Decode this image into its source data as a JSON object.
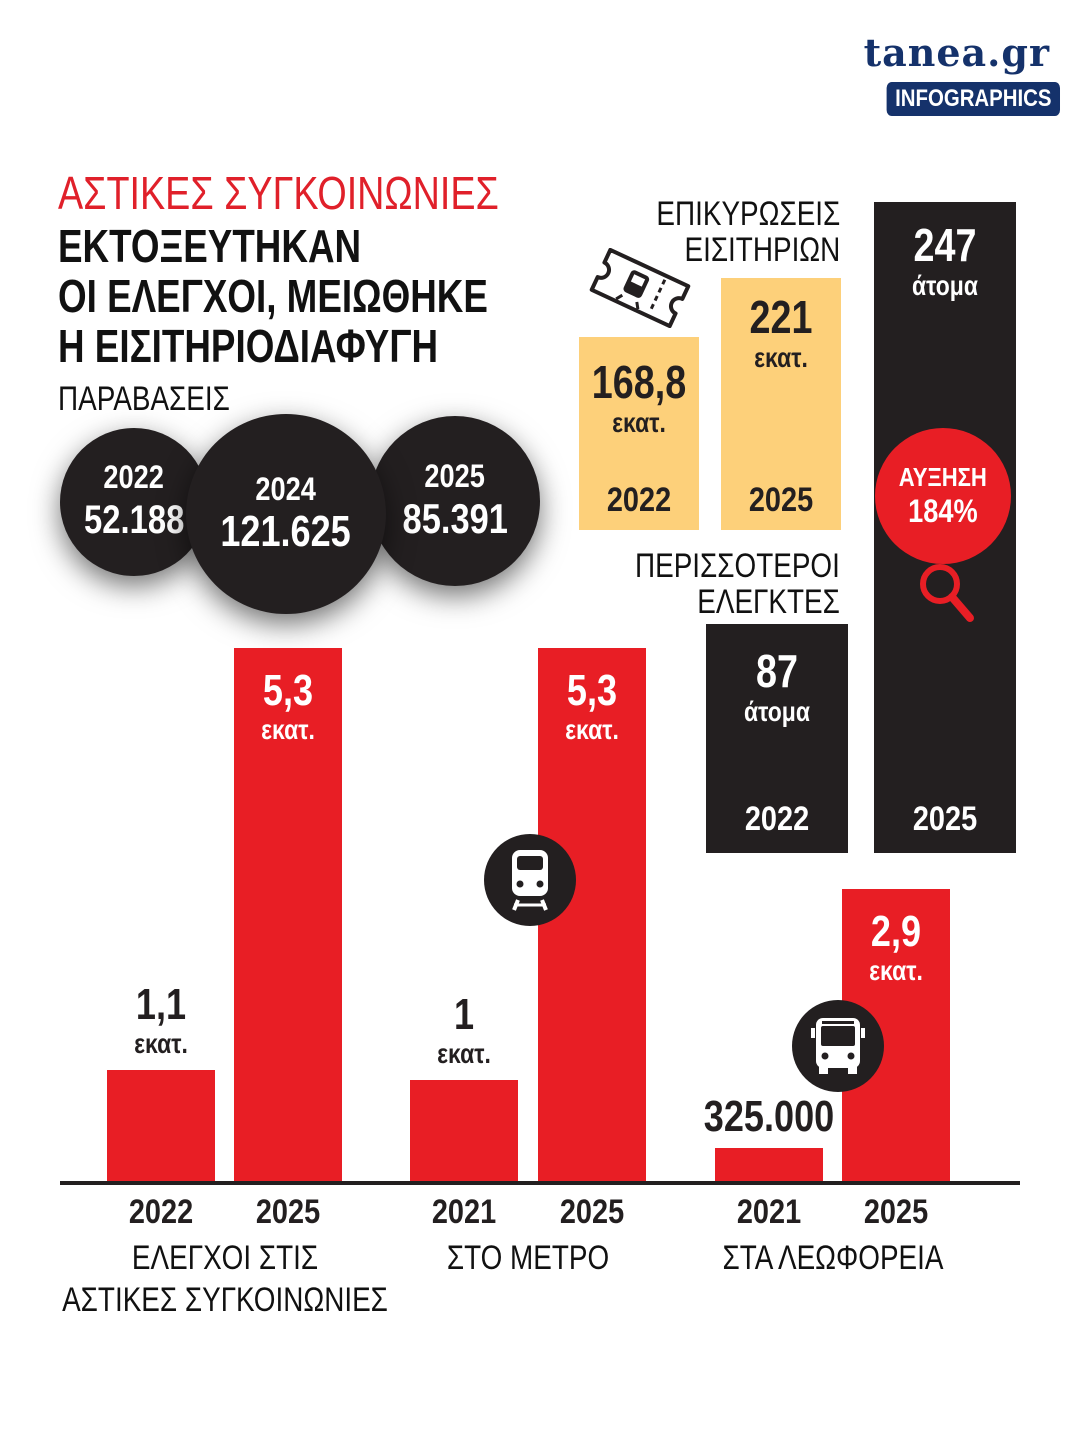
{
  "brand": {
    "name": "tanea.gr",
    "badge": "INFOGRAPHICS"
  },
  "title": {
    "kicker": "ΑΣΤΙΚΕΣ ΣΥΓΚΟΙΝΩΝΙΕΣ",
    "lines": [
      "ΕΚΤΟΞΕΥΤΗΚΑΝ",
      "ΟΙ ΕΛΕΓΧΟΙ, ΜΕΙΩΘΗΚΕ",
      "Η ΕΙΣΙΤΗΡΙΟΔΙΑΦΥΓΗ"
    ]
  },
  "violations": {
    "label": "ΠΑΡΑΒΑΣΕΙΣ",
    "items": [
      {
        "year": "2022",
        "value": "52.188"
      },
      {
        "year": "2024",
        "value": "121.625"
      },
      {
        "year": "2025",
        "value": "85.391"
      }
    ]
  },
  "validations": {
    "label_line1": "ΕΠΙΚΥΡΩΣΕΙΣ",
    "label_line2": "ΕΙΣΙΤΗΡΙΩΝ",
    "items": [
      {
        "year": "2022",
        "value": "168,8",
        "unit": "εκατ."
      },
      {
        "year": "2025",
        "value": "221",
        "unit": "εκατ."
      }
    ]
  },
  "inspectors": {
    "label_line1": "ΠΕΡΙΣΣΟΤΕΡΟΙ",
    "label_line2": "ΕΛΕΓΚΤΕΣ",
    "items": [
      {
        "year": "2022",
        "value": "87",
        "unit": "άτομα"
      },
      {
        "year": "2025",
        "value": "247",
        "unit": "άτομα"
      }
    ],
    "increase_label": "ΑΥΞΗΣΗ",
    "increase_value": "184%"
  },
  "colors": {
    "red": "#e81e25",
    "dark": "#231f20",
    "yellow": "#fdd07a",
    "brand": "#15326b"
  },
  "icons": [
    "ticket-icon",
    "metro-train-icon",
    "bus-icon",
    "magnifier-icon"
  ],
  "chart_data": {
    "type": "bar",
    "groups": [
      {
        "label_lines": [
          "ΕΛΕΓΧΟΙ ΣΤΙΣ",
          "ΑΣΤΙΚΕΣ ΣΥΓΚΟΙΝΩΝΙΕΣ"
        ],
        "bars": [
          {
            "year": "2022",
            "value": 1.1,
            "label": "1,1",
            "unit": "εκατ."
          },
          {
            "year": "2025",
            "value": 5.3,
            "label": "5,3",
            "unit": "εκατ."
          }
        ]
      },
      {
        "label_lines": [
          "ΣΤΟ ΜΕΤΡΟ"
        ],
        "bars": [
          {
            "year": "2021",
            "value": 1.0,
            "label": "1",
            "unit": "εκατ."
          },
          {
            "year": "2025",
            "value": 5.3,
            "label": "5,3",
            "unit": "εκατ."
          }
        ]
      },
      {
        "label_lines": [
          "ΣΤΑ ΛΕΩΦΟΡΕΙΑ"
        ],
        "bars": [
          {
            "year": "2021",
            "value": 0.325,
            "label": "325.000",
            "unit": ""
          },
          {
            "year": "2025",
            "value": 2.9,
            "label": "2,9",
            "unit": "εκατ."
          }
        ]
      }
    ],
    "ylim": [
      0,
      5.3
    ]
  }
}
